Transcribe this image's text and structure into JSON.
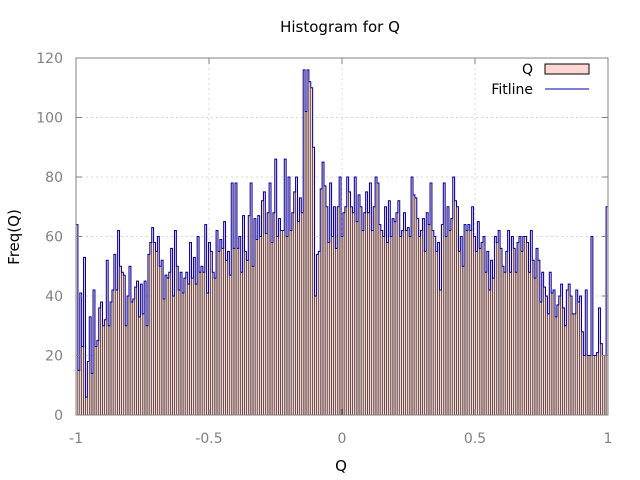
{
  "chart_data": {
    "type": "bar",
    "title": "Histogram for Q",
    "xlabel": "Q",
    "ylabel": "Freq(Q)",
    "xlim": [
      -1,
      1
    ],
    "ylim": [
      0,
      120
    ],
    "xticks": [
      -1,
      -0.5,
      0,
      0.5,
      1
    ],
    "xtick_labels": [
      "-1",
      "-0.5",
      "0",
      "0.5",
      "1"
    ],
    "yticks": [
      0,
      20,
      40,
      60,
      80,
      100,
      120
    ],
    "ytick_labels": [
      "0",
      "20",
      "40",
      "60",
      "80",
      "100",
      "120"
    ],
    "grid": true,
    "legend_position": "top-right",
    "bin_width": 0.01,
    "colors": {
      "bar_fill": "#fcd7d4",
      "bar_edge": "#000000",
      "fitline": "#0000a0",
      "grid": "#d8d8d8",
      "axis": "#808080"
    },
    "series": [
      {
        "name": "Q",
        "kind": "histogram",
        "values": [
          64,
          15,
          41,
          23,
          53,
          6,
          18,
          33,
          14,
          42,
          23,
          25,
          36,
          38,
          30,
          32,
          52,
          30,
          38,
          42,
          54,
          42,
          62,
          50,
          48,
          47,
          30,
          40,
          50,
          38,
          39,
          43,
          45,
          33,
          44,
          34,
          45,
          30,
          54,
          58,
          63,
          58,
          55,
          60,
          50,
          52,
          39,
          47,
          46,
          48,
          56,
          40,
          62,
          50,
          42,
          48,
          41,
          46,
          48,
          44,
          58,
          46,
          53,
          44,
          60,
          48,
          50,
          48,
          64,
          41,
          58,
          55,
          48,
          46,
          62,
          55,
          59,
          56,
          65,
          52,
          55,
          47,
          78,
          56,
          78,
          56,
          60,
          48,
          67,
          55,
          52,
          67,
          78,
          50,
          66,
          59,
          67,
          60,
          72,
          75,
          61,
          68,
          78,
          58,
          68,
          86,
          60,
          66,
          62,
          62,
          86,
          60,
          80,
          62,
          68,
          75,
          80,
          65,
          73,
          68,
          116,
          102,
          116,
          112,
          110,
          90,
          40,
          54,
          55,
          76,
          85,
          77,
          70,
          58,
          78,
          60,
          70,
          56,
          70,
          80,
          60,
          68,
          70,
          80,
          75,
          70,
          68,
          80,
          65,
          74,
          70,
          62,
          68,
          75,
          68,
          78,
          62,
          70,
          80,
          78,
          64,
          62,
          60,
          70,
          58,
          72,
          60,
          66,
          65,
          68,
          72,
          60,
          62,
          68,
          62,
          63,
          60,
          80,
          74,
          73,
          66,
          60,
          62,
          66,
          55,
          68,
          64,
          78,
          62,
          60,
          55,
          58,
          42,
          64,
          78,
          60,
          70,
          62,
          66,
          80,
          72,
          70,
          55,
          60,
          50,
          64,
          62,
          64,
          62,
          70,
          60,
          55,
          65,
          56,
          58,
          60,
          48,
          55,
          42,
          52,
          46,
          60,
          58,
          62,
          56,
          50,
          48,
          55,
          62,
          48,
          60,
          56,
          48,
          58,
          60,
          55,
          60,
          60,
          58,
          48,
          62,
          52,
          46,
          56,
          52,
          38,
          48,
          43,
          40,
          34,
          48,
          41,
          42,
          33,
          37,
          40,
          44,
          36,
          30,
          42,
          44,
          40,
          34,
          34,
          42,
          38,
          40,
          28,
          20,
          42,
          20,
          20,
          60,
          20,
          20,
          21,
          36,
          24,
          20,
          20,
          70
        ],
        "style": "bars"
      },
      {
        "name": "Fitline",
        "kind": "line",
        "style": "step",
        "values": [
          64,
          15,
          41,
          23,
          53,
          6,
          18,
          33,
          14,
          42,
          23,
          25,
          36,
          38,
          30,
          32,
          52,
          30,
          38,
          42,
          54,
          42,
          62,
          50,
          48,
          47,
          30,
          40,
          50,
          38,
          39,
          43,
          45,
          33,
          44,
          34,
          45,
          30,
          54,
          58,
          63,
          58,
          55,
          60,
          50,
          52,
          39,
          47,
          46,
          48,
          56,
          40,
          62,
          50,
          42,
          48,
          41,
          46,
          48,
          44,
          58,
          46,
          53,
          44,
          60,
          48,
          50,
          48,
          64,
          41,
          58,
          55,
          48,
          46,
          62,
          55,
          59,
          56,
          65,
          52,
          55,
          47,
          78,
          56,
          78,
          56,
          60,
          48,
          67,
          55,
          52,
          67,
          78,
          50,
          66,
          59,
          67,
          60,
          72,
          75,
          61,
          68,
          78,
          58,
          68,
          86,
          60,
          66,
          62,
          62,
          86,
          60,
          80,
          62,
          68,
          75,
          80,
          65,
          73,
          68,
          116,
          102,
          116,
          112,
          110,
          90,
          40,
          54,
          55,
          76,
          85,
          77,
          70,
          58,
          78,
          60,
          70,
          56,
          70,
          80,
          60,
          68,
          70,
          80,
          75,
          70,
          68,
          80,
          65,
          74,
          70,
          62,
          68,
          75,
          68,
          78,
          62,
          70,
          80,
          78,
          64,
          62,
          60,
          70,
          58,
          72,
          60,
          66,
          65,
          68,
          72,
          60,
          62,
          68,
          62,
          63,
          60,
          80,
          74,
          73,
          66,
          60,
          62,
          66,
          55,
          68,
          64,
          78,
          62,
          60,
          55,
          58,
          42,
          64,
          78,
          60,
          70,
          62,
          66,
          80,
          72,
          70,
          55,
          60,
          50,
          64,
          62,
          64,
          62,
          70,
          60,
          55,
          65,
          56,
          58,
          60,
          48,
          55,
          42,
          52,
          46,
          60,
          58,
          62,
          56,
          50,
          48,
          55,
          62,
          48,
          60,
          56,
          48,
          58,
          60,
          55,
          60,
          60,
          58,
          48,
          62,
          52,
          46,
          56,
          52,
          38,
          48,
          43,
          40,
          34,
          48,
          41,
          42,
          33,
          37,
          40,
          44,
          36,
          30,
          42,
          44,
          40,
          34,
          34,
          42,
          38,
          40,
          28,
          20,
          42,
          20,
          20,
          60,
          20,
          20,
          21,
          36,
          24,
          20,
          20,
          70
        ]
      }
    ]
  }
}
